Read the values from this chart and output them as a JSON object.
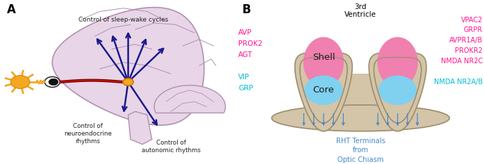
{
  "panel_a_label": "A",
  "panel_b_label": "B",
  "brain_color": "#e8d5e8",
  "brain_edge_color": "#b090b0",
  "arrow_color": "#1a1a8c",
  "sun_color": "#f5a623",
  "scn_dot_color": "#f5a623",
  "shell_color": "#f080b0",
  "core_color": "#80d0f0",
  "shell_text": "Shell",
  "core_text": "Core",
  "ventricle_text": "3rd\nVentricle",
  "rht_text": "RHT Terminals\nfrom\nOptic Chiasm",
  "rht_color": "#4488cc",
  "left_pink_labels": "AVP\nPROK2\nAGT",
  "left_cyan_labels": "VIP\nGRP",
  "right_pink_labels": "VPAC2\nGRPR\nAVPR1A/B\nPROKR2\nNMDA NR2C",
  "right_cyan_labels": "NMDA NR2A/B",
  "pink_color": "#ff1493",
  "cyan_color": "#00bcd4",
  "sleep_wake_text": "Control of sleep-wake cycles",
  "neuroendo_text": "Control of\nneuroendocrine\nrhythms",
  "autonomic_text": "Control of\nautonomic rhythms",
  "dark_text_color": "#222222",
  "wave_color": "#f5a623",
  "outline_color": "#c8b090",
  "beige_color": "#d4c4a8",
  "beige_edge": "#a09070"
}
